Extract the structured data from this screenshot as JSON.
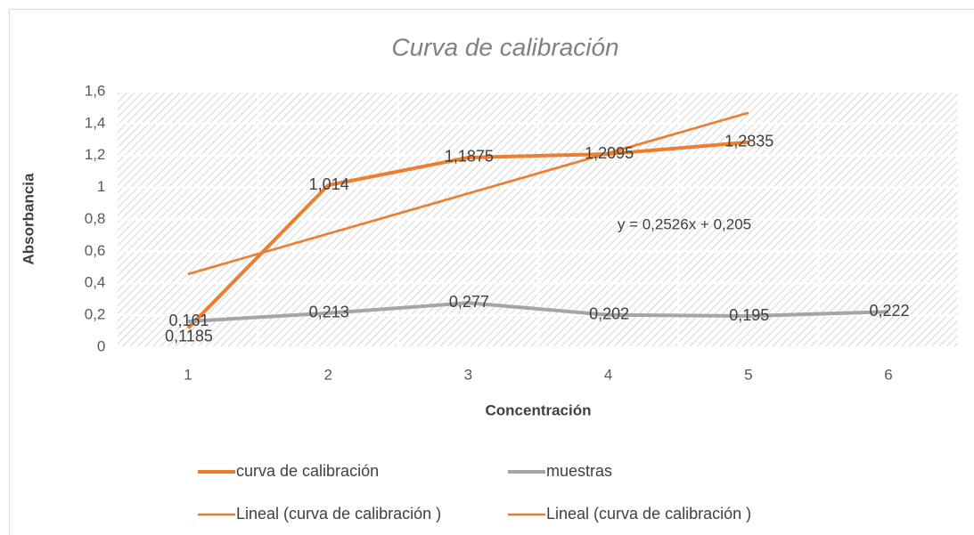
{
  "chart_data": {
    "type": "line",
    "title": "Curva de calibración",
    "x_label": "Concentración",
    "y_label": "Absorbancia",
    "categories": [
      "1",
      "2",
      "3",
      "4",
      "5",
      "6"
    ],
    "series": [
      {
        "name": "curva de calibración",
        "color": "#ed7d31",
        "values": [
          0.1185,
          1.014,
          1.1875,
          1.2095,
          1.2835,
          null
        ],
        "value_labels": [
          "0,1185",
          "1,014",
          "1,1875",
          "1,2095",
          "1,2835",
          null
        ]
      },
      {
        "name": "muestras",
        "color": "#a5a5a5",
        "values": [
          0.161,
          0.213,
          0.277,
          0.202,
          0.195,
          0.222
        ],
        "value_labels": [
          "0,161",
          "0,213",
          "0,277",
          "0,202",
          "0,195",
          "0,222"
        ]
      },
      {
        "name": "Lineal (curva de calibración )",
        "color": "#ed7d31",
        "trendline": true,
        "values": [
          0.4576,
          0.7102,
          0.9628,
          1.2154,
          1.468,
          null
        ]
      },
      {
        "name": "Lineal (curva de calibración )",
        "color": "#ed7d31",
        "trendline": true,
        "values": [
          0.4576,
          0.7102,
          0.9628,
          1.2154,
          1.468,
          null
        ]
      }
    ],
    "annotation": "y = 0,2526x + 0,205",
    "ylim": [
      0,
      1.6
    ],
    "yticks": [
      0,
      {
        "value": 0.2,
        "label": "0,2"
      },
      {
        "value": 0.4,
        "label": "0,4"
      },
      {
        "value": 0.6,
        "label": "0,6"
      },
      {
        "value": 0.8,
        "label": "0,8"
      },
      1,
      {
        "value": 1.2,
        "label": "1,2"
      },
      {
        "value": 1.4,
        "label": "1,4"
      },
      {
        "value": 1.6,
        "label": "1,6"
      }
    ],
    "grid": true,
    "legend": "bottom"
  }
}
